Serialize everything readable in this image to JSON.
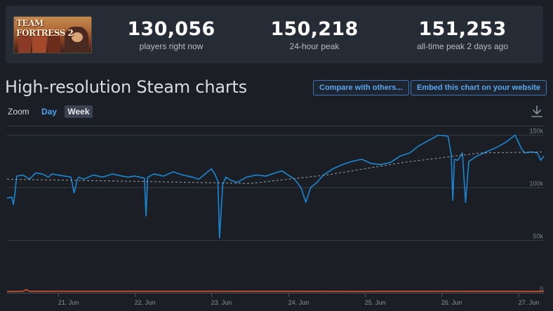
{
  "game": {
    "logo_text": "TEAM FORTRESS 2"
  },
  "stats": [
    {
      "value": "130,056",
      "label": "players right now"
    },
    {
      "value": "150,218",
      "label": "24-hour peak"
    },
    {
      "value": "151,253",
      "label": "all-time peak 2 days ago"
    }
  ],
  "chart_section": {
    "title": "High-resolution Steam charts",
    "compare_label": "Compare with others...",
    "embed_label": "Embed this chart on your website",
    "zoom_label": "Zoom",
    "zoom_day": "Day",
    "zoom_week": "Week",
    "download_icon": "download-icon"
  },
  "colors": {
    "players_line": "#1a87d3",
    "trend_line": "#9aa0a8",
    "twitch_line": "#d4562a",
    "background": "#1b1f25"
  },
  "chart_data": {
    "type": "line",
    "ylim": [
      0,
      165000
    ],
    "y_ticks": [
      {
        "value": 0,
        "label": "0"
      },
      {
        "value": 50000,
        "label": "50k"
      },
      {
        "value": 100000,
        "label": "100k"
      },
      {
        "value": 150000,
        "label": "150k"
      }
    ],
    "x_range": [
      "2023-06-20T08:00",
      "2023-06-27T08:00"
    ],
    "x_ticks": [
      {
        "x": "2023-06-21",
        "label": "21. Jun"
      },
      {
        "x": "2023-06-22",
        "label": "22. Jun"
      },
      {
        "x": "2023-06-23",
        "label": "23. Jun"
      },
      {
        "x": "2023-06-24",
        "label": "24. Jun"
      },
      {
        "x": "2023-06-25",
        "label": "25. Jun"
      },
      {
        "x": "2023-06-26",
        "label": "26. Jun"
      },
      {
        "x": "2023-06-27",
        "label": "27. Jun"
      }
    ],
    "series": [
      {
        "style": "solid",
        "x": [
          "2023-06-20T08:00",
          "2023-06-20T09:30",
          "2023-06-20T10:00",
          "2023-06-20T10:30",
          "2023-06-20T11:00",
          "2023-06-20T13:00",
          "2023-06-20T15:00",
          "2023-06-20T17:00",
          "2023-06-20T19:00",
          "2023-06-20T21:00",
          "2023-06-20T22:00",
          "2023-06-21T00:00",
          "2023-06-21T02:00",
          "2023-06-21T04:00",
          "2023-06-21T05:00",
          "2023-06-21T06:00",
          "2023-06-21T06:30",
          "2023-06-21T08:00",
          "2023-06-21T11:00",
          "2023-06-21T14:00",
          "2023-06-21T17:00",
          "2023-06-21T20:00",
          "2023-06-21T22:00",
          "2023-06-22T00:00",
          "2023-06-22T03:00",
          "2023-06-22T03:30",
          "2023-06-22T04:00",
          "2023-06-22T06:00",
          "2023-06-22T09:00",
          "2023-06-22T12:00",
          "2023-06-22T15:00",
          "2023-06-22T18:00",
          "2023-06-22T20:00",
          "2023-06-22T22:00",
          "2023-06-23T00:00",
          "2023-06-23T01:00",
          "2023-06-23T02:00",
          "2023-06-23T02:30",
          "2023-06-23T03:30",
          "2023-06-23T04:30",
          "2023-06-23T06:00",
          "2023-06-23T08:00",
          "2023-06-23T11:00",
          "2023-06-23T14:00",
          "2023-06-23T17:00",
          "2023-06-23T20:00",
          "2023-06-23T22:00",
          "2023-06-24T00:00",
          "2023-06-24T02:00",
          "2023-06-24T04:00",
          "2023-06-24T05:30",
          "2023-06-24T07:00",
          "2023-06-24T09:00",
          "2023-06-24T11:00",
          "2023-06-24T14:00",
          "2023-06-24T17:00",
          "2023-06-24T20:00",
          "2023-06-24T23:00",
          "2023-06-25T02:00",
          "2023-06-25T05:00",
          "2023-06-25T08:00",
          "2023-06-25T11:00",
          "2023-06-25T14:00",
          "2023-06-25T17:00",
          "2023-06-25T20:00",
          "2023-06-25T23:00",
          "2023-06-26T02:00",
          "2023-06-26T03:00",
          "2023-06-26T03:30",
          "2023-06-26T04:00",
          "2023-06-26T05:00",
          "2023-06-26T06:30",
          "2023-06-26T07:30",
          "2023-06-26T08:30",
          "2023-06-26T11:00",
          "2023-06-26T14:00",
          "2023-06-26T17:00",
          "2023-06-26T20:00",
          "2023-06-26T23:00",
          "2023-06-27T01:00",
          "2023-06-27T02:00",
          "2023-06-27T04:00",
          "2023-06-27T06:00",
          "2023-06-27T07:00",
          "2023-06-27T08:00"
        ],
        "y": [
          90000,
          91000,
          84000,
          95000,
          111000,
          112000,
          108000,
          114000,
          113000,
          110000,
          113000,
          112000,
          111000,
          110000,
          95000,
          108000,
          110000,
          108000,
          112000,
          110000,
          113000,
          111000,
          110000,
          111000,
          109000,
          73000,
          110000,
          113000,
          111000,
          115000,
          112000,
          110000,
          108000,
          113000,
          118000,
          113000,
          106000,
          52000,
          103000,
          110000,
          107000,
          105000,
          110000,
          112000,
          111000,
          114000,
          116000,
          112000,
          108000,
          100000,
          86000,
          100000,
          105000,
          112000,
          118000,
          122000,
          125000,
          127000,
          123000,
          122000,
          124000,
          130000,
          133000,
          140000,
          145000,
          150000,
          149000,
          132000,
          88000,
          127000,
          126000,
          133000,
          86000,
          125000,
          130000,
          134000,
          138000,
          143000,
          150000,
          137000,
          133000,
          134000,
          133000,
          126000,
          130000
        ]
      },
      {
        "style": "dashed",
        "x": [
          "2023-06-20T08:00",
          "2023-06-22T00:00",
          "2023-06-23T12:00",
          "2023-06-24T12:00",
          "2023-06-25T12:00",
          "2023-06-26T12:00",
          "2023-06-27T08:00"
        ],
        "y": [
          108000,
          106000,
          104000,
          112000,
          124000,
          133000,
          134000
        ]
      },
      {
        "style": "solid",
        "x": [
          "2023-06-20T08:00",
          "2023-06-20T13:00",
          "2023-06-20T14:00",
          "2023-06-20T15:00",
          "2023-06-21T00:00",
          "2023-06-23T00:00",
          "2023-06-25T00:00",
          "2023-06-26T00:00",
          "2023-06-27T08:00"
        ],
        "y": [
          1200,
          1400,
          3000,
          1400,
          1500,
          1500,
          1300,
          1500,
          1300
        ]
      }
    ]
  }
}
